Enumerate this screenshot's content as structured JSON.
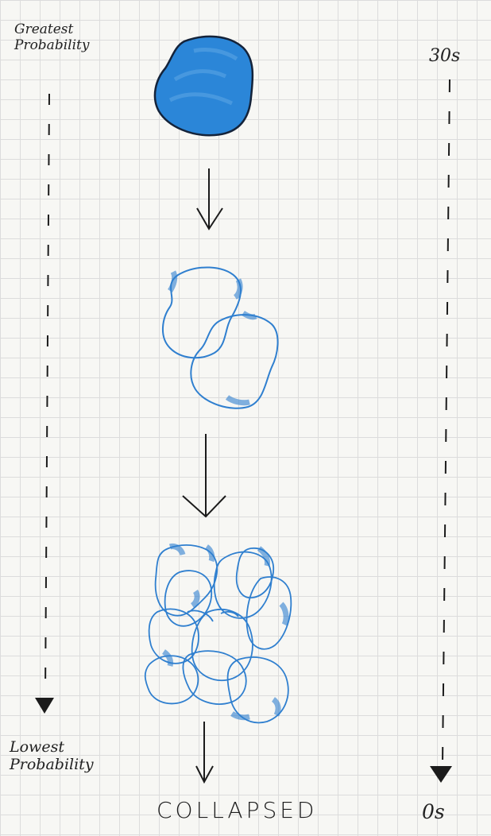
{
  "labels": {
    "top_left": [
      "Greatest",
      "Probability"
    ],
    "bottom_left": [
      "Lowest",
      "Probability"
    ],
    "top_right": "30s",
    "bottom_right": "0s",
    "bottom_center": "COLLAPSED"
  },
  "colors": {
    "ink": "#1b1b1b",
    "blob_fill": "#2b86d8",
    "blob_outline": "#2f7fcf",
    "grid": "#dcdcdc",
    "paper": "#f7f7f4"
  }
}
